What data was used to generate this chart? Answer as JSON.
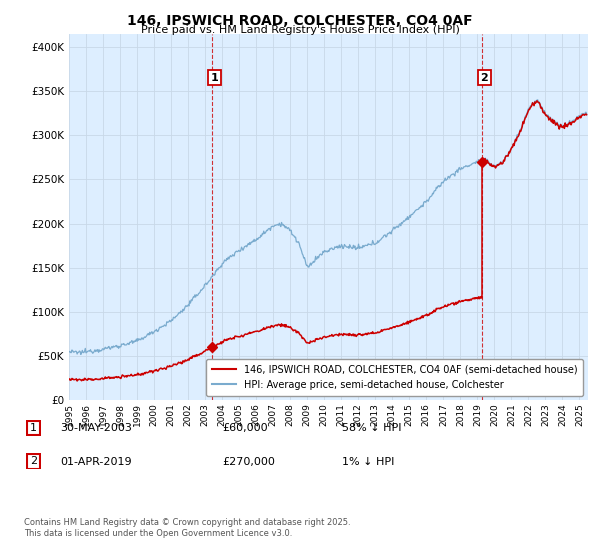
{
  "title": "146, IPSWICH ROAD, COLCHESTER, CO4 0AF",
  "subtitle": "Price paid vs. HM Land Registry's House Price Index (HPI)",
  "ytick_values": [
    0,
    50000,
    100000,
    150000,
    200000,
    250000,
    300000,
    350000,
    400000
  ],
  "ylim": [
    0,
    415000
  ],
  "xlim_start": 1995.0,
  "xlim_end": 2025.5,
  "red_color": "#cc0000",
  "blue_color": "#7aabce",
  "chart_bg": "#ddeeff",
  "background_color": "#ffffff",
  "grid_color": "#c8d8e8",
  "sale1_x": 2003.42,
  "sale1_y": 60000,
  "sale2_x": 2019.25,
  "sale2_y": 270000,
  "annotation1_label": "1",
  "annotation2_label": "2",
  "legend_line1": "146, IPSWICH ROAD, COLCHESTER, CO4 0AF (semi-detached house)",
  "legend_line2": "HPI: Average price, semi-detached house, Colchester",
  "table_row1": [
    "1",
    "30-MAY-2003",
    "£60,000",
    "58% ↓ HPI"
  ],
  "table_row2": [
    "2",
    "01-APR-2019",
    "£270,000",
    "1% ↓ HPI"
  ],
  "footer": "Contains HM Land Registry data © Crown copyright and database right 2025.\nThis data is licensed under the Open Government Licence v3.0."
}
